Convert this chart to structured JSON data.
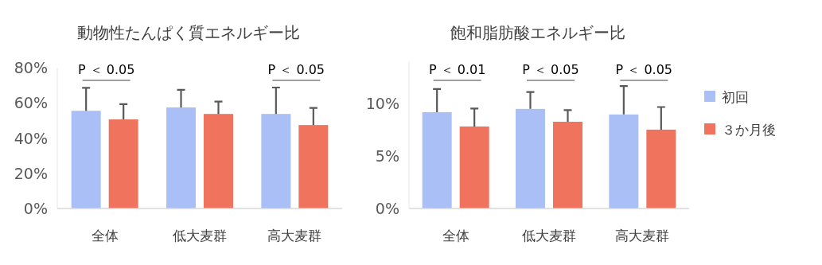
{
  "chart_data": [
    {
      "type": "bar",
      "title": "動物性たんぱく質エネルギー比",
      "categories": [
        "全体",
        "低大麦群",
        "高大麦群"
      ],
      "series": [
        {
          "color": "#a9bff5",
          "values": [
            55.5,
            57.4,
            53.7
          ],
          "errors": [
            13,
            10,
            15
          ]
        },
        {
          "color": "#f0735e",
          "values": [
            50.6,
            53.7,
            47.4
          ],
          "errors": [
            8.7,
            7,
            9.7
          ]
        }
      ],
      "ylim": [
        0,
        80
      ],
      "yticks": [
        {
          "value": 0,
          "label": "0%"
        },
        {
          "value": 20,
          "label": "20%"
        },
        {
          "value": 40,
          "label": "40%"
        },
        {
          "value": 60,
          "label": "60%"
        },
        {
          "value": 80,
          "label": "80%"
        }
      ],
      "annotations": [
        "P ＜ 0.05",
        "P ＜ 0.05"
      ],
      "grid": false
    },
    {
      "type": "bar",
      "title": "飽和脂肪酸エネルギー比",
      "categories": [
        "全体",
        "低大麦群",
        "高大麦群"
      ],
      "series": [
        {
          "name": "初回",
          "color": "#a9bff5",
          "values": [
            9.16,
            9.47,
            8.94
          ],
          "errors": [
            2.2,
            1.6,
            2.7
          ]
        },
        {
          "name": "３か月後",
          "color": "#f0735e",
          "values": [
            7.8,
            8.25,
            7.5
          ],
          "errors": [
            1.7,
            1.1,
            2.15
          ]
        }
      ],
      "ylim": [
        0,
        14
      ],
      "yticks": [
        {
          "value": 0,
          "label": "0%"
        },
        {
          "value": 5,
          "label": "5%"
        },
        {
          "value": 10,
          "label": "10%"
        }
      ],
      "annotations": [
        "P ＜ 0.01",
        "P ＜ 0.05",
        "P ＜ 0.05"
      ],
      "grid": false,
      "legend": "right"
    }
  ]
}
